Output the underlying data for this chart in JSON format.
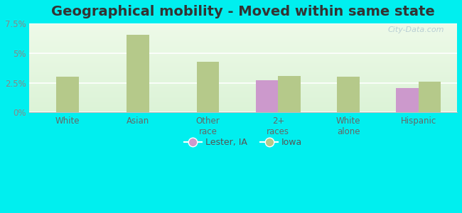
{
  "title": "Geographical mobility - Moved within same state",
  "categories": [
    "White",
    "Asian",
    "Other\nrace",
    "2+\nraces",
    "White\nalone",
    "Hispanic"
  ],
  "lester_values": [
    null,
    null,
    null,
    2.7,
    null,
    2.05
  ],
  "iowa_values": [
    3.0,
    6.55,
    4.3,
    3.05,
    3.0,
    2.6
  ],
  "lester_color": "#cc99cc",
  "iowa_color": "#b5c98a",
  "ylim": [
    0,
    7.5
  ],
  "yticks": [
    0,
    2.5,
    5.0,
    7.5
  ],
  "ytick_labels": [
    "0%",
    "2.5%",
    "5%",
    "7.5%"
  ],
  "background_color": "#00efef",
  "bar_width": 0.32,
  "legend_lester": "Lester, IA",
  "legend_iowa": "Iowa",
  "title_fontsize": 14,
  "watermark": "City-Data.com"
}
